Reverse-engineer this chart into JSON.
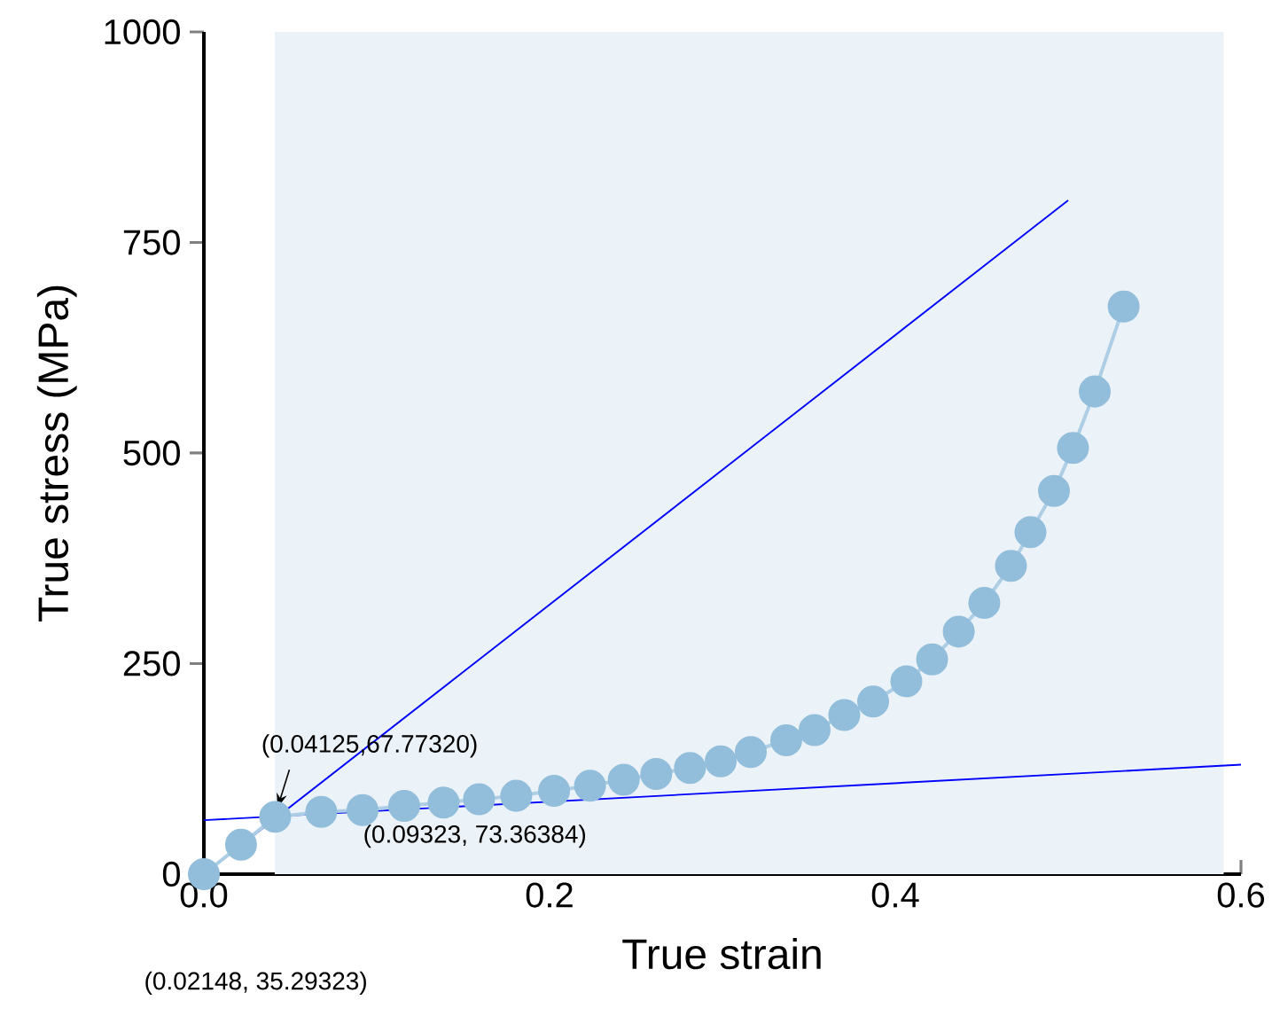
{
  "chart_data": {
    "type": "line",
    "xlabel": "True strain",
    "ylabel": "True stress (MPa)",
    "xlim": [
      0,
      0.6
    ],
    "ylim": [
      0,
      1000
    ],
    "xticks": [
      {
        "value": 0,
        "label": "0.0"
      },
      {
        "value": 0.2,
        "label": "0.2"
      },
      {
        "value": 0.4,
        "label": "0.4"
      },
      {
        "value": 0.6,
        "label": "0.6"
      }
    ],
    "yticks": [
      0,
      250,
      500,
      750,
      1000
    ],
    "series": [
      {
        "marker": "circle",
        "color": "#92bedb",
        "x": [
          0,
          0.02148,
          0.04125,
          0.0679,
          0.0918,
          0.1159,
          0.1387,
          0.1592,
          0.1807,
          0.2026,
          0.2234,
          0.2429,
          0.2617,
          0.2812,
          0.299,
          0.3164,
          0.3369,
          0.3533,
          0.3705,
          0.3872,
          0.4064,
          0.4213,
          0.4367,
          0.4515,
          0.4669,
          0.4782,
          0.4918,
          0.5028,
          0.5154,
          0.5321
        ],
        "values": [
          0,
          35,
          68,
          74,
          76,
          81,
          85,
          89,
          93,
          99,
          105,
          112,
          119,
          126,
          134,
          145,
          159,
          171,
          189,
          205,
          229,
          255,
          288,
          322,
          366,
          406,
          455,
          506,
          573,
          674
        ]
      },
      {
        "type": "line",
        "marker": "none",
        "color": "#0000ff",
        "x": [
          0,
          0.5
        ],
        "values": [
          0,
          800
        ]
      },
      {
        "type": "line",
        "marker": "none",
        "color": "#0000ff",
        "x": [
          0,
          0.6
        ],
        "values": [
          64,
          130
        ]
      }
    ],
    "bands": [
      {
        "axis": "x",
        "from": 0.041,
        "to": 0.59,
        "color": "#ebf3f8"
      }
    ],
    "annotations": [
      {
        "text": "(0.04125,67.77320)",
        "x": 0.04125,
        "y": 67.7732
      },
      {
        "text": "(0.09323, 73.36384)",
        "x": 0.09323,
        "y": 73.36384
      },
      "(0.02148, 35.29323)"
    ]
  }
}
